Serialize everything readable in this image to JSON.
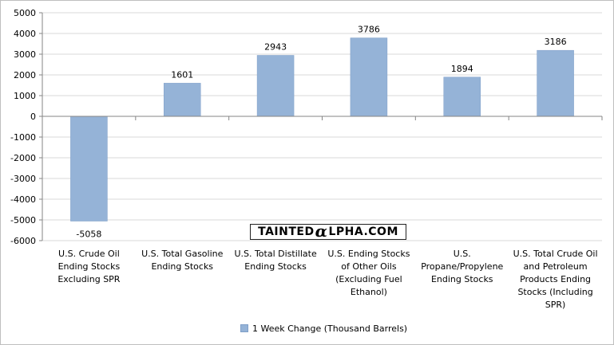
{
  "chart_data": {
    "type": "bar",
    "categories": [
      "U.S. Crude Oil Ending Stocks Excluding SPR",
      "U.S. Total Gasoline Ending Stocks",
      "U.S. Total Distillate Ending Stocks",
      "U.S. Ending Stocks of Other Oils (Excluding Fuel Ethanol)",
      "U.S. Propane/Propylene Ending Stocks",
      "U.S. Total Crude Oil and Petroleum Products Ending Stocks (Including SPR)"
    ],
    "series": [
      {
        "name": "1 Week Change (Thousand Barrels)",
        "values": [
          -5058,
          1601,
          2943,
          3786,
          1894,
          3186
        ]
      }
    ],
    "data_labels": [
      "-5058",
      "1601",
      "2943",
      "3786",
      "1894",
      "3186"
    ],
    "ylim": [
      -6000,
      5000
    ],
    "yticks": [
      "5000",
      "4000",
      "3000",
      "2000",
      "1000",
      "0",
      "-1000",
      "-2000",
      "-3000",
      "-4000",
      "-5000",
      "-6000"
    ],
    "grid": true,
    "legend_position": "bottom",
    "colors": {
      "bar": "#95b3d7",
      "bar_edge": "#7f9fc8",
      "grid": "#d9d9d9",
      "axis": "#868686"
    }
  },
  "watermark": {
    "left": "TAINTED",
    "mid": "α",
    "right": "LPHA.COM"
  },
  "legend": {
    "label": "1 Week Change (Thousand Barrels)"
  }
}
